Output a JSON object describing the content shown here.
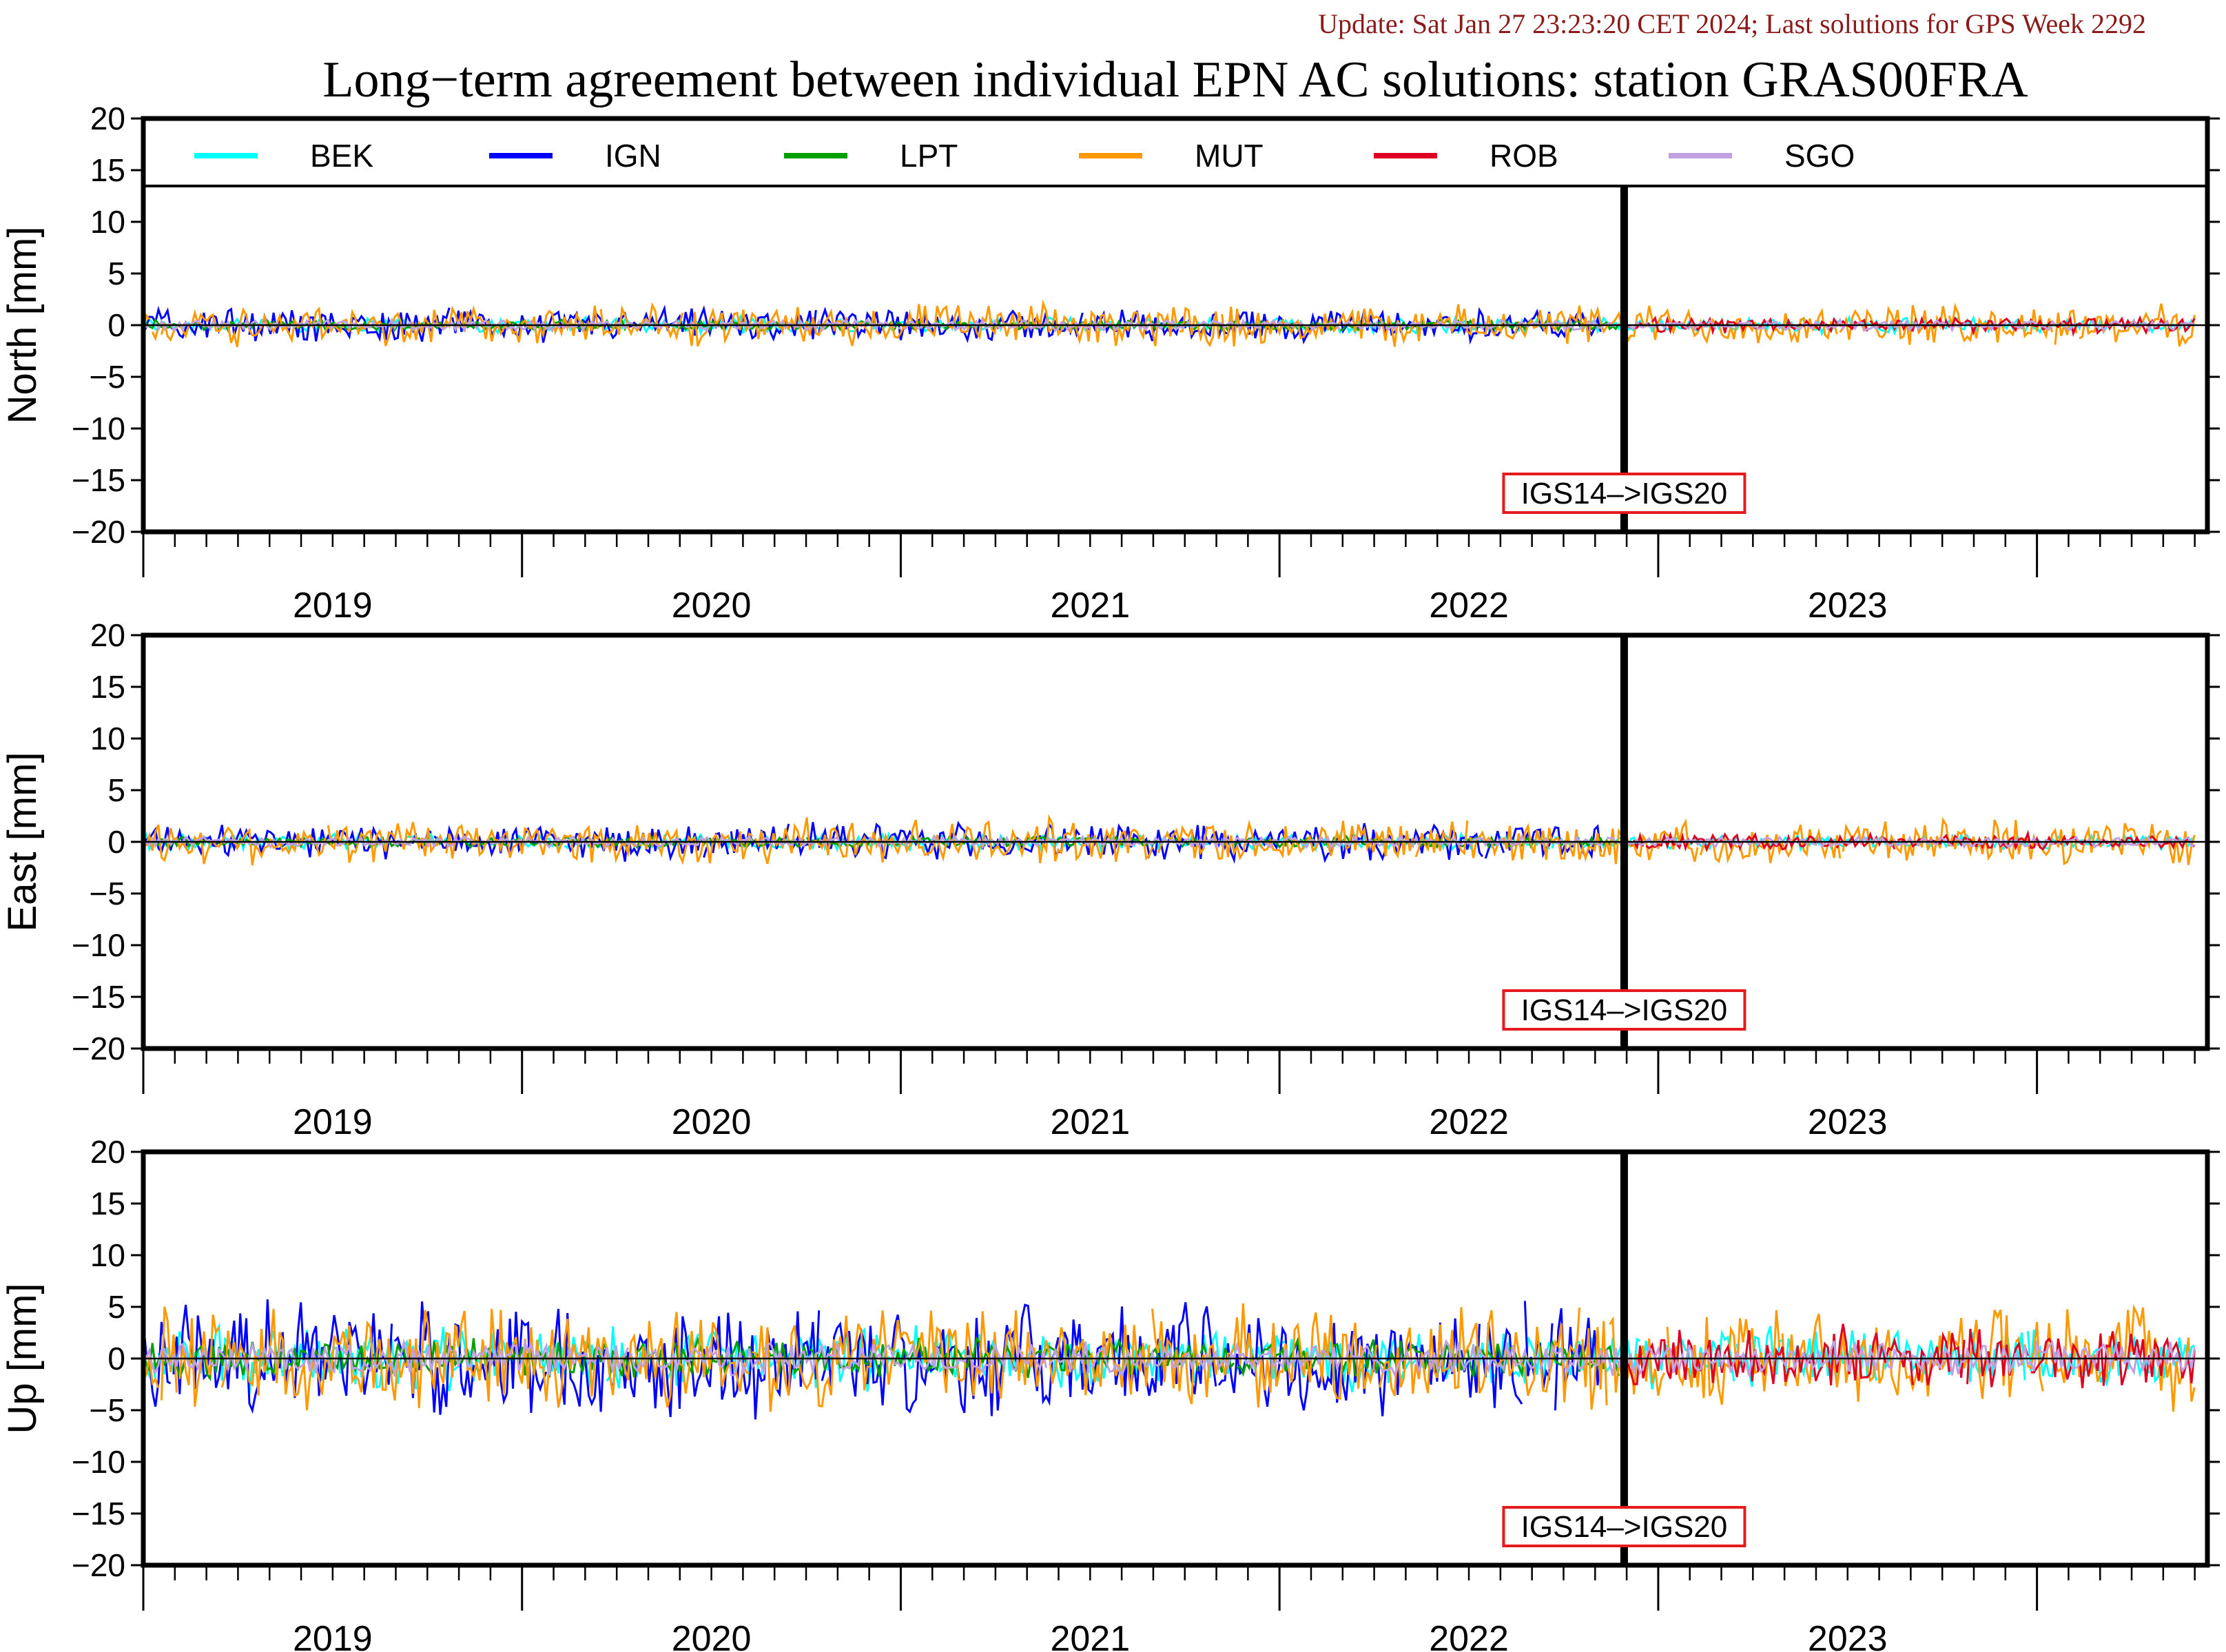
{
  "update_line": "Update: Sat Jan 27 23:23:20 CET 2024; Last solutions for GPS Week 2292",
  "title": "Long−term agreement between individual EPN AC solutions: station GRAS00FRA",
  "colors": {
    "update_text": "#8b1a1a",
    "annotation_border": "#e41a1c",
    "axis": "#000000"
  },
  "legend": [
    {
      "name": "BEK",
      "color": "#00ffff"
    },
    {
      "name": "IGN",
      "color": "#0000ff"
    },
    {
      "name": "LPT",
      "color": "#00a000"
    },
    {
      "name": "MUT",
      "color": "#ff9900"
    },
    {
      "name": "ROB",
      "color": "#dd0022"
    },
    {
      "name": "SGO",
      "color": "#c0a0e0"
    }
  ],
  "chart_data": [
    {
      "type": "line",
      "ylabel": "North [mm]",
      "ylim": [
        -20,
        20
      ],
      "yticks": [
        "20",
        "15",
        "10",
        "5",
        "0",
        "−5",
        "−10",
        "−15",
        "−20"
      ],
      "xlim": [
        2018.5,
        2023.95
      ],
      "year_labels": [
        "2019",
        "2020",
        "2021",
        "2022",
        "2023"
      ],
      "frame_change": {
        "x": 2022.41,
        "label": "IGS14–>IGS20"
      },
      "has_legend": true,
      "series_spread": [
        {
          "name": "BEK",
          "amp": 0.6,
          "end": 2023.92
        },
        {
          "name": "IGN",
          "amp": 1.3,
          "end": 2022.35
        },
        {
          "name": "LPT",
          "amp": 0.4,
          "end": 2022.4
        },
        {
          "name": "MUT",
          "amp": 1.6,
          "end": 2023.92
        },
        {
          "name": "ROB",
          "amp": 0.6,
          "start": 2022.42,
          "end": 2023.92
        },
        {
          "name": "SGO",
          "amp": 0.4,
          "end": 2023.92
        }
      ]
    },
    {
      "type": "line",
      "ylabel": "East [mm]",
      "ylim": [
        -20,
        20
      ],
      "yticks": [
        "20",
        "15",
        "10",
        "5",
        "0",
        "−5",
        "−10",
        "−15",
        "−20"
      ],
      "xlim": [
        2018.5,
        2023.95
      ],
      "year_labels": [
        "2019",
        "2020",
        "2021",
        "2022",
        "2023"
      ],
      "frame_change": {
        "x": 2022.41,
        "label": "IGS14–>IGS20"
      },
      "has_legend": false,
      "series_spread": [
        {
          "name": "BEK",
          "amp": 0.6,
          "end": 2023.92
        },
        {
          "name": "IGN",
          "amp": 1.4,
          "end": 2022.35
        },
        {
          "name": "LPT",
          "amp": 0.4,
          "end": 2022.4
        },
        {
          "name": "MUT",
          "amp": 1.7,
          "end": 2023.92
        },
        {
          "name": "ROB",
          "amp": 0.6,
          "start": 2022.42,
          "end": 2023.92
        },
        {
          "name": "SGO",
          "amp": 0.4,
          "end": 2023.92
        }
      ]
    },
    {
      "type": "line",
      "ylabel": "Up [mm]",
      "ylim": [
        -20,
        20
      ],
      "yticks": [
        "20",
        "15",
        "10",
        "5",
        "0",
        "−5",
        "−10",
        "−15",
        "−20"
      ],
      "xlim": [
        2018.5,
        2023.95
      ],
      "year_labels": [
        "2019",
        "2020",
        "2021",
        "2022",
        "2023"
      ],
      "frame_change": {
        "x": 2022.41,
        "label": "IGS14–>IGS20"
      },
      "has_legend": false,
      "series_spread": [
        {
          "name": "BEK",
          "amp": 2.5,
          "end": 2023.92
        },
        {
          "name": "IGN",
          "amp": 4.5,
          "end": 2022.35
        },
        {
          "name": "LPT",
          "amp": 1.5,
          "end": 2022.4
        },
        {
          "name": "MUT",
          "amp": 4.0,
          "end": 2023.92
        },
        {
          "name": "ROB",
          "amp": 2.5,
          "start": 2022.42,
          "end": 2023.92
        },
        {
          "name": "SGO",
          "amp": 1.3,
          "end": 2023.92
        }
      ]
    }
  ]
}
